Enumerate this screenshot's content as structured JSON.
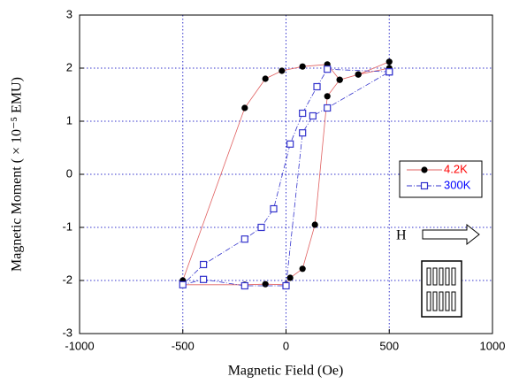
{
  "chart_data": {
    "type": "scatter",
    "xlabel": "Magnetic Field (Oe)",
    "ylabel": "Magnetic Moment ( × 10⁻⁵ EMU)",
    "xlim": [
      -1000,
      1000
    ],
    "ylim": [
      -3,
      3
    ],
    "xticks": [
      -1000,
      -500,
      0,
      500,
      1000
    ],
    "yticks": [
      -3,
      -2,
      -1,
      0,
      1,
      2,
      3
    ],
    "grid": true,
    "annotation": "H",
    "series": [
      {
        "name": "4.2K",
        "color": "#000000",
        "line_color": "#e06060",
        "marker": "circle",
        "text_color": "#ff0000",
        "x": [
          500,
          350,
          260,
          200,
          80,
          -20,
          -100,
          -200,
          -500,
          -500,
          -200,
          -100,
          0,
          20,
          80,
          140,
          200,
          260,
          350,
          500
        ],
        "values": [
          2.12,
          1.88,
          1.78,
          2.07,
          2.03,
          1.95,
          1.8,
          1.25,
          -2.0,
          -2.08,
          -2.08,
          -2.07,
          -2.08,
          -1.95,
          -1.78,
          -0.95,
          1.47,
          1.78,
          1.88,
          2.0
        ]
      },
      {
        "name": "300K",
        "color": "#3333cc",
        "line_color": "#3333cc",
        "marker": "square",
        "text_color": "#0000ff",
        "x": [
          500,
          200,
          150,
          80,
          20,
          -60,
          -120,
          -200,
          -400,
          -500,
          -400,
          -200,
          0,
          80,
          130,
          200,
          500
        ],
        "values": [
          1.93,
          1.98,
          1.65,
          1.15,
          0.57,
          -0.65,
          -1.0,
          -1.22,
          -1.7,
          -2.08,
          -1.98,
          -2.1,
          -2.1,
          0.78,
          1.1,
          1.25,
          1.93
        ]
      }
    ]
  }
}
